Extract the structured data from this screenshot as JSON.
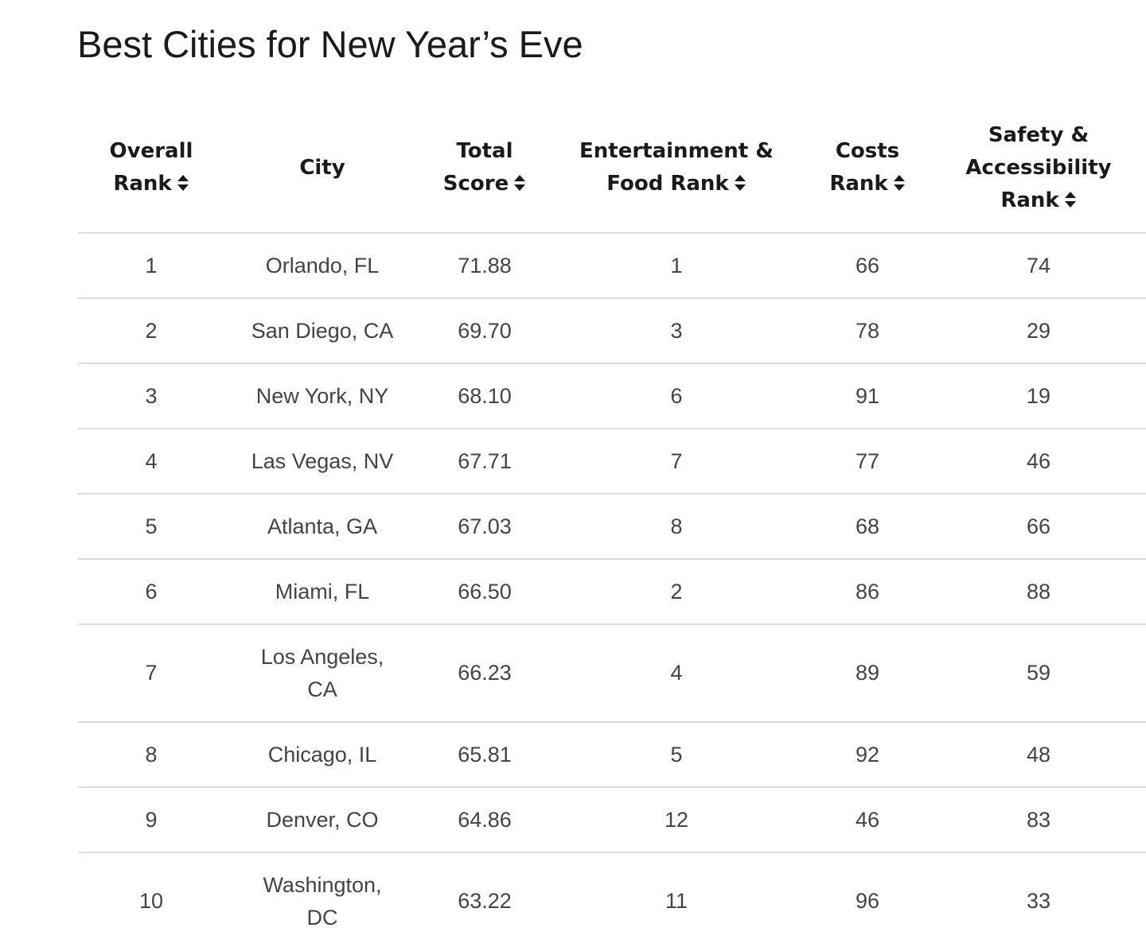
{
  "page": {
    "title": "Best Cities for New Year’s Eve"
  },
  "table": {
    "headers": [
      {
        "label_line1": "Overall",
        "label_line2": "Rank",
        "label_line3": "",
        "sortable": true,
        "sort_icon": "sort-updown-icon"
      },
      {
        "label_line1": "City",
        "label_line2": "",
        "label_line3": "",
        "sortable": false
      },
      {
        "label_line1": "Total",
        "label_line2": "Score",
        "label_line3": "",
        "sortable": true,
        "sort_icon": "sort-updown-icon"
      },
      {
        "label_line1": "Entertainment &",
        "label_line2": "Food Rank",
        "label_line3": "",
        "sortable": true,
        "sort_icon": "sort-updown-icon"
      },
      {
        "label_line1": "Costs",
        "label_line2": "Rank",
        "label_line3": "",
        "sortable": true,
        "sort_icon": "sort-updown-icon"
      },
      {
        "label_line1": "Safety &",
        "label_line2": "Accessibility",
        "label_line3": "Rank",
        "sortable": true,
        "sort_icon": "sort-updown-icon"
      }
    ],
    "rows": [
      {
        "overall_rank": "1",
        "city_line1": "Orlando, FL",
        "city_line2": "",
        "total_score": "71.88",
        "entertainment_food_rank": "1",
        "costs_rank": "66",
        "safety_accessibility_rank": "74"
      },
      {
        "overall_rank": "2",
        "city_line1": "San Diego, CA",
        "city_line2": "",
        "total_score": "69.70",
        "entertainment_food_rank": "3",
        "costs_rank": "78",
        "safety_accessibility_rank": "29"
      },
      {
        "overall_rank": "3",
        "city_line1": "New York, NY",
        "city_line2": "",
        "total_score": "68.10",
        "entertainment_food_rank": "6",
        "costs_rank": "91",
        "safety_accessibility_rank": "19"
      },
      {
        "overall_rank": "4",
        "city_line1": "Las Vegas, NV",
        "city_line2": "",
        "total_score": "67.71",
        "entertainment_food_rank": "7",
        "costs_rank": "77",
        "safety_accessibility_rank": "46"
      },
      {
        "overall_rank": "5",
        "city_line1": "Atlanta, GA",
        "city_line2": "",
        "total_score": "67.03",
        "entertainment_food_rank": "8",
        "costs_rank": "68",
        "safety_accessibility_rank": "66"
      },
      {
        "overall_rank": "6",
        "city_line1": "Miami, FL",
        "city_line2": "",
        "total_score": "66.50",
        "entertainment_food_rank": "2",
        "costs_rank": "86",
        "safety_accessibility_rank": "88"
      },
      {
        "overall_rank": "7",
        "city_line1": "Los Angeles,",
        "city_line2": "CA",
        "total_score": "66.23",
        "entertainment_food_rank": "4",
        "costs_rank": "89",
        "safety_accessibility_rank": "59"
      },
      {
        "overall_rank": "8",
        "city_line1": "Chicago, IL",
        "city_line2": "",
        "total_score": "65.81",
        "entertainment_food_rank": "5",
        "costs_rank": "92",
        "safety_accessibility_rank": "48"
      },
      {
        "overall_rank": "9",
        "city_line1": "Denver, CO",
        "city_line2": "",
        "total_score": "64.86",
        "entertainment_food_rank": "12",
        "costs_rank": "46",
        "safety_accessibility_rank": "83"
      },
      {
        "overall_rank": "10",
        "city_line1": "Washington,",
        "city_line2": "DC",
        "total_score": "63.22",
        "entertainment_food_rank": "11",
        "costs_rank": "96",
        "safety_accessibility_rank": "33"
      }
    ]
  }
}
